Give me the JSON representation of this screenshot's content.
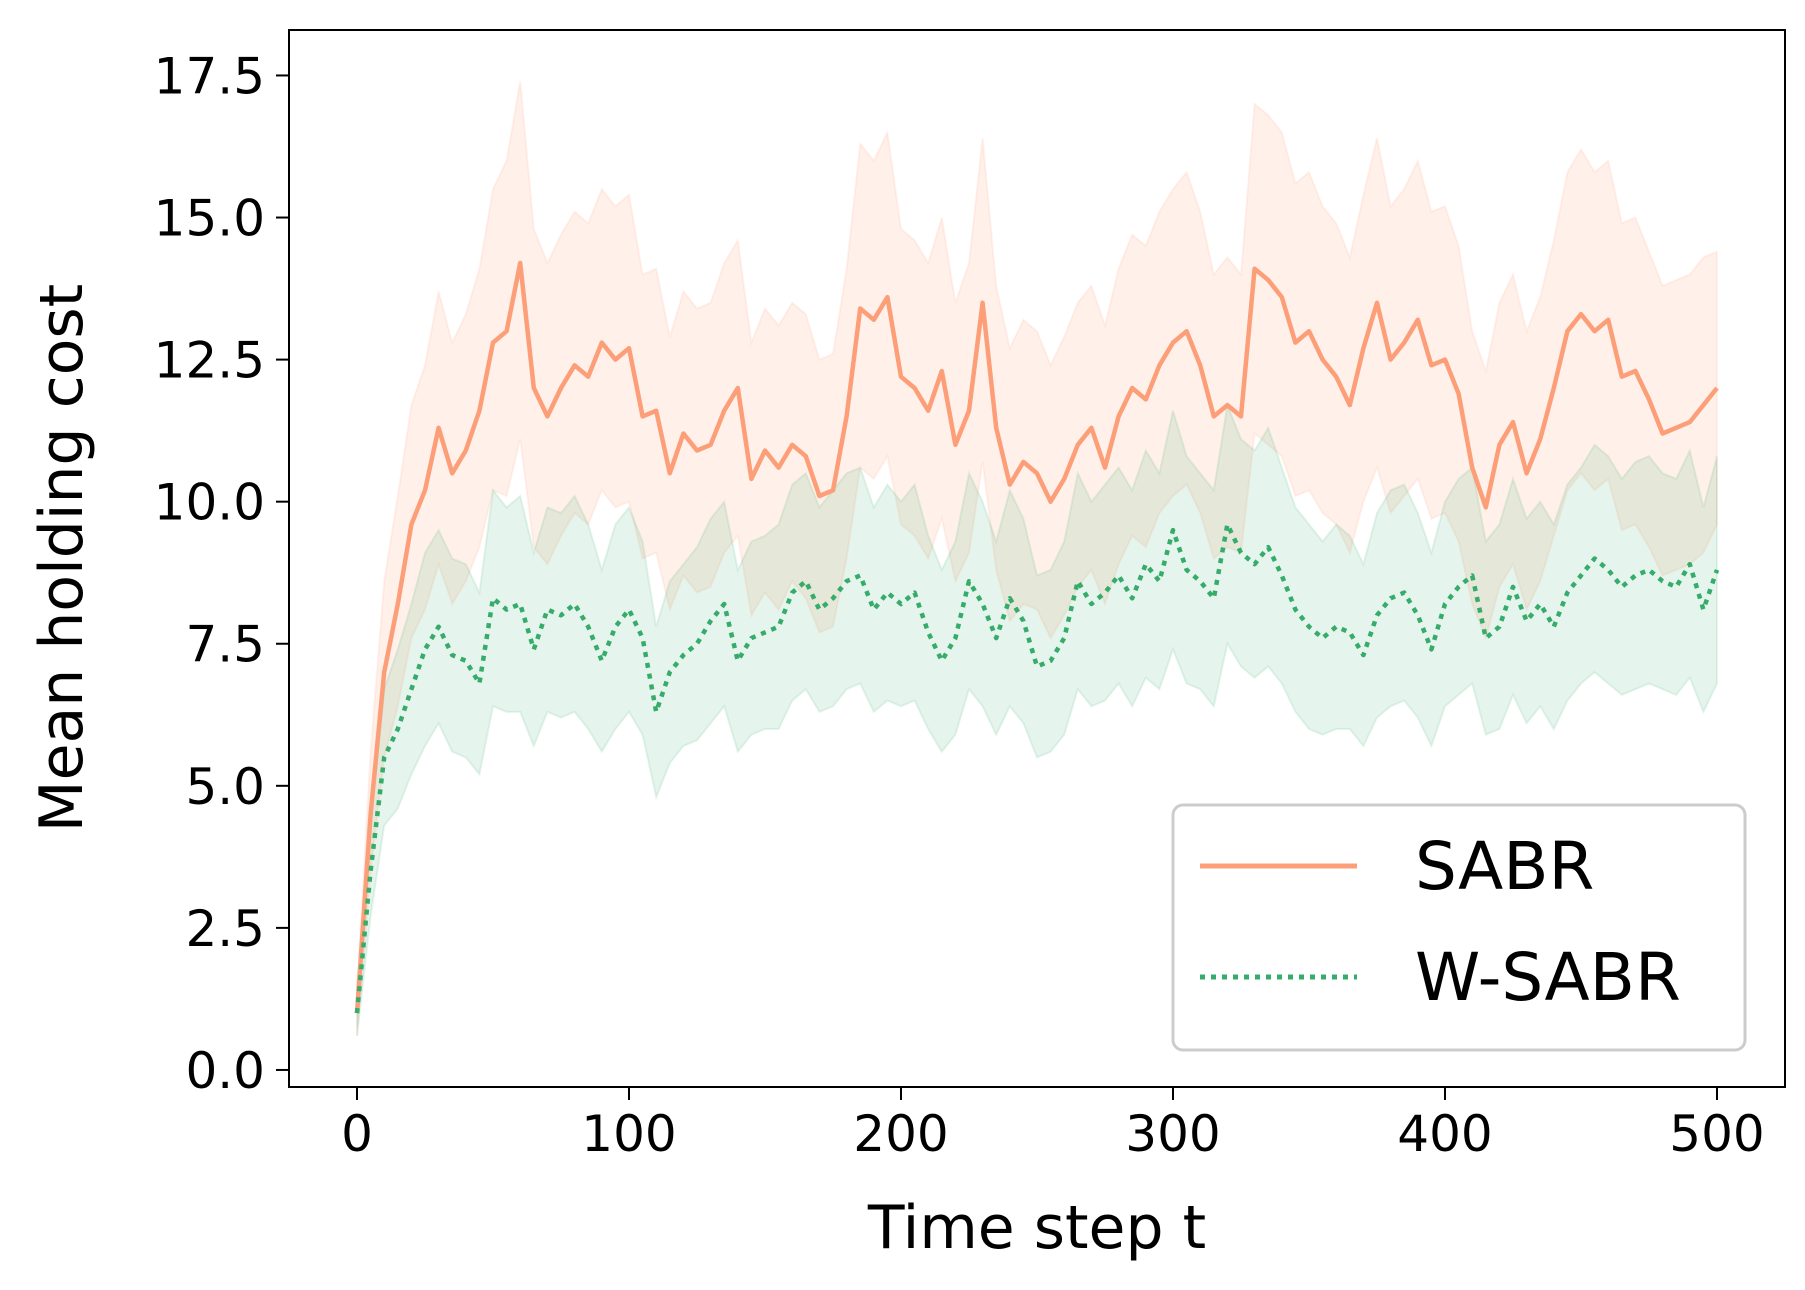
{
  "chart_data": {
    "type": "line",
    "title": "",
    "xlabel": "Time step t",
    "ylabel": "Mean holding cost",
    "xlim": [
      -25,
      525
    ],
    "ylim": [
      -0.3,
      18.3
    ],
    "xticks": [
      0,
      100,
      200,
      300,
      400,
      500
    ],
    "xtick_labels": [
      "0",
      "100",
      "200",
      "300",
      "400",
      "500"
    ],
    "yticks": [
      0.0,
      2.5,
      5.0,
      7.5,
      10.0,
      12.5,
      15.0,
      17.5
    ],
    "ytick_labels": [
      "0.0",
      "2.5",
      "5.0",
      "7.5",
      "10.0",
      "12.5",
      "15.0",
      "17.5"
    ],
    "grid": false,
    "legend": "lower-right",
    "x": [
      0,
      5,
      10,
      15,
      20,
      25,
      30,
      35,
      40,
      45,
      50,
      55,
      60,
      65,
      70,
      75,
      80,
      85,
      90,
      95,
      100,
      105,
      110,
      115,
      120,
      125,
      130,
      135,
      140,
      145,
      150,
      155,
      160,
      165,
      170,
      175,
      180,
      185,
      190,
      195,
      200,
      205,
      210,
      215,
      220,
      225,
      230,
      235,
      240,
      245,
      250,
      255,
      260,
      265,
      270,
      275,
      280,
      285,
      290,
      295,
      300,
      305,
      310,
      315,
      320,
      325,
      330,
      335,
      340,
      345,
      350,
      355,
      360,
      365,
      370,
      375,
      380,
      385,
      390,
      395,
      400,
      405,
      410,
      415,
      420,
      425,
      430,
      435,
      440,
      445,
      450,
      455,
      460,
      465,
      470,
      475,
      480,
      485,
      490,
      495,
      500
    ],
    "series": [
      {
        "name": "SABR",
        "color": "#fc9f79",
        "linestyle": "solid",
        "values": [
          1.0,
          4.5,
          7.0,
          8.2,
          9.6,
          10.2,
          11.3,
          10.5,
          10.9,
          11.6,
          12.8,
          13.0,
          14.2,
          12.0,
          11.5,
          12.0,
          12.4,
          12.2,
          12.8,
          12.5,
          12.7,
          11.5,
          11.6,
          10.5,
          11.2,
          10.9,
          11.0,
          11.6,
          12.0,
          10.4,
          10.9,
          10.6,
          11.0,
          10.8,
          10.1,
          10.2,
          11.5,
          13.4,
          13.2,
          13.6,
          12.2,
          12.0,
          11.6,
          12.3,
          11.0,
          11.6,
          13.5,
          11.3,
          10.3,
          10.7,
          10.5,
          10.0,
          10.4,
          11.0,
          11.3,
          10.6,
          11.5,
          12.0,
          11.8,
          12.4,
          12.8,
          13.0,
          12.4,
          11.5,
          11.7,
          11.5,
          14.1,
          13.9,
          13.6,
          12.8,
          13.0,
          12.5,
          12.2,
          11.7,
          12.7,
          13.5,
          12.5,
          12.8,
          13.2,
          12.4,
          12.5,
          11.9,
          10.6,
          9.9,
          11.0,
          11.4,
          10.5,
          11.1,
          12.0,
          13.0,
          13.3,
          13.0,
          13.2,
          12.2,
          12.3,
          11.8,
          11.2,
          11.3,
          11.4,
          11.7,
          12.0
        ]
      },
      {
        "name": "W-SABR",
        "color": "#35ac6a",
        "linestyle": "dotted",
        "values": [
          1.0,
          3.5,
          5.5,
          6.0,
          6.7,
          7.4,
          7.8,
          7.3,
          7.2,
          6.8,
          8.3,
          8.1,
          8.2,
          7.4,
          8.1,
          8.0,
          8.2,
          7.8,
          7.2,
          7.8,
          8.1,
          7.6,
          6.3,
          7.0,
          7.3,
          7.5,
          7.9,
          8.2,
          7.2,
          7.6,
          7.7,
          7.8,
          8.4,
          8.6,
          8.1,
          8.3,
          8.6,
          8.7,
          8.1,
          8.4,
          8.2,
          8.4,
          7.7,
          7.2,
          7.6,
          8.6,
          8.2,
          7.6,
          8.3,
          7.9,
          7.1,
          7.2,
          7.6,
          8.6,
          8.2,
          8.4,
          8.7,
          8.3,
          8.9,
          8.6,
          9.5,
          8.8,
          8.6,
          8.3,
          9.6,
          9.1,
          8.9,
          9.2,
          8.7,
          8.1,
          7.8,
          7.6,
          7.8,
          7.7,
          7.3,
          8.0,
          8.3,
          8.4,
          8.0,
          7.4,
          8.2,
          8.5,
          8.7,
          7.6,
          7.8,
          8.5,
          7.9,
          8.2,
          7.8,
          8.4,
          8.7,
          9.0,
          8.8,
          8.5,
          8.7,
          8.8,
          8.6,
          8.5,
          8.9,
          8.1,
          8.8
        ]
      }
    ],
    "bands": [
      {
        "name": "SABR",
        "color": "#fc9f79",
        "opacity": 0.16,
        "lower": [
          0.6,
          3.5,
          5.5,
          6.4,
          7.6,
          8.1,
          8.9,
          8.2,
          8.6,
          9.2,
          10.2,
          10.1,
          11.1,
          9.2,
          8.9,
          9.4,
          9.8,
          9.6,
          10.2,
          9.9,
          10.0,
          9.0,
          9.1,
          8.1,
          8.7,
          8.4,
          8.5,
          9.1,
          9.4,
          8.0,
          8.4,
          8.1,
          8.6,
          8.3,
          7.7,
          7.8,
          9.0,
          10.6,
          10.4,
          10.8,
          9.6,
          9.4,
          9.0,
          9.7,
          8.6,
          9.1,
          10.7,
          8.8,
          7.9,
          8.2,
          8.1,
          7.6,
          8.0,
          8.5,
          8.8,
          8.2,
          8.9,
          9.4,
          9.2,
          9.8,
          10.1,
          10.3,
          9.8,
          9.0,
          9.2,
          9.1,
          11.2,
          11.0,
          10.8,
          10.1,
          10.2,
          9.8,
          9.6,
          9.1,
          10.0,
          10.6,
          9.8,
          10.1,
          10.4,
          9.7,
          9.8,
          9.3,
          8.2,
          7.6,
          8.5,
          8.9,
          8.1,
          8.6,
          9.4,
          10.2,
          10.5,
          10.2,
          10.4,
          9.5,
          9.6,
          9.2,
          8.7,
          8.8,
          8.9,
          9.1,
          9.6
        ],
        "upper": [
          1.4,
          5.6,
          8.6,
          10.1,
          11.7,
          12.4,
          13.7,
          12.8,
          13.3,
          14.1,
          15.5,
          16.0,
          17.4,
          14.8,
          14.2,
          14.7,
          15.1,
          14.9,
          15.5,
          15.2,
          15.4,
          14.0,
          14.1,
          12.9,
          13.7,
          13.4,
          13.5,
          14.2,
          14.6,
          12.8,
          13.4,
          13.1,
          13.5,
          13.3,
          12.5,
          12.6,
          14.1,
          16.3,
          16.0,
          16.5,
          14.8,
          14.6,
          14.2,
          15.0,
          13.5,
          14.2,
          16.4,
          13.8,
          12.7,
          13.2,
          13.0,
          12.4,
          12.9,
          13.5,
          13.8,
          13.1,
          14.1,
          14.7,
          14.5,
          15.1,
          15.5,
          15.8,
          15.1,
          14.0,
          14.3,
          14.0,
          17.0,
          16.8,
          16.5,
          15.6,
          15.8,
          15.2,
          14.9,
          14.3,
          15.4,
          16.4,
          15.2,
          15.5,
          16.0,
          15.1,
          15.2,
          14.5,
          13.0,
          12.3,
          13.5,
          14.0,
          13.0,
          13.6,
          14.6,
          15.8,
          16.2,
          15.8,
          16.0,
          14.9,
          15.0,
          14.4,
          13.8,
          13.9,
          14.0,
          14.3,
          14.4
        ]
      },
      {
        "name": "W-SABR",
        "color": "#35ac6a",
        "opacity": 0.13,
        "lower": [
          0.6,
          2.7,
          4.3,
          4.6,
          5.2,
          5.7,
          6.1,
          5.6,
          5.5,
          5.2,
          6.4,
          6.3,
          6.3,
          5.7,
          6.3,
          6.2,
          6.3,
          6.0,
          5.6,
          6.0,
          6.3,
          5.9,
          4.8,
          5.4,
          5.7,
          5.8,
          6.1,
          6.4,
          5.6,
          5.9,
          6.0,
          6.0,
          6.5,
          6.7,
          6.3,
          6.4,
          6.7,
          6.8,
          6.3,
          6.5,
          6.4,
          6.5,
          6.0,
          5.6,
          5.9,
          6.7,
          6.4,
          5.9,
          6.4,
          6.1,
          5.5,
          5.6,
          5.9,
          6.7,
          6.4,
          6.5,
          6.8,
          6.4,
          6.9,
          6.7,
          7.4,
          6.8,
          6.7,
          6.4,
          7.5,
          7.1,
          6.9,
          7.1,
          6.8,
          6.3,
          6.0,
          5.9,
          6.0,
          6.0,
          5.7,
          6.2,
          6.4,
          6.5,
          6.2,
          5.7,
          6.4,
          6.6,
          6.8,
          5.9,
          6.0,
          6.6,
          6.1,
          6.4,
          6.0,
          6.5,
          6.8,
          7.0,
          6.8,
          6.6,
          6.7,
          6.8,
          6.7,
          6.6,
          6.9,
          6.3,
          6.8
        ],
        "upper": [
          1.4,
          4.3,
          6.7,
          7.4,
          8.2,
          9.1,
          9.5,
          9.0,
          8.9,
          8.4,
          10.2,
          9.9,
          10.1,
          9.1,
          9.9,
          9.8,
          10.1,
          9.6,
          8.8,
          9.6,
          9.9,
          9.3,
          7.8,
          8.6,
          8.9,
          9.2,
          9.7,
          10.0,
          8.8,
          9.3,
          9.4,
          9.6,
          10.3,
          10.5,
          9.9,
          10.2,
          10.5,
          10.6,
          9.9,
          10.3,
          10.0,
          10.3,
          9.4,
          8.8,
          9.3,
          10.5,
          10.0,
          9.3,
          10.2,
          9.7,
          8.7,
          8.8,
          9.3,
          10.5,
          10.0,
          10.3,
          10.6,
          10.2,
          10.9,
          10.5,
          11.6,
          10.8,
          10.5,
          10.2,
          11.7,
          11.1,
          10.9,
          11.3,
          10.6,
          9.9,
          9.6,
          9.3,
          9.6,
          9.4,
          8.9,
          9.8,
          10.2,
          10.3,
          9.8,
          9.1,
          10.0,
          10.4,
          10.6,
          9.3,
          9.6,
          10.4,
          9.7,
          10.0,
          9.6,
          10.3,
          10.6,
          11.0,
          10.8,
          10.4,
          10.7,
          10.8,
          10.5,
          10.4,
          10.9,
          9.9,
          10.8
        ]
      }
    ]
  }
}
